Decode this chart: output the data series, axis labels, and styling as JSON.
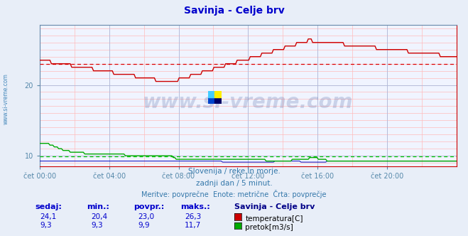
{
  "title": "Savinja - Celje brv",
  "title_color": "#0000cc",
  "bg_color": "#e8eef8",
  "plot_bg_color": "#f0f4ff",
  "grid_major_color": "#aabbdd",
  "grid_minor_color": "#ffcccc",
  "tick_label_color": "#5588aa",
  "spine_color_left": "#6688aa",
  "spine_color_bottom": "#cc0000",
  "ylim": [
    8.5,
    28.5
  ],
  "yticks": [
    10,
    20
  ],
  "xtick_positions": [
    0,
    4,
    8,
    12,
    16,
    20
  ],
  "xtick_labels": [
    "čet 00:00",
    "čet 04:00",
    "čet 08:00",
    "čet 12:00",
    "čet 16:00",
    "čet 20:00"
  ],
  "watermark": "www.si-vreme.com",
  "watermark_color": "#1a3a8a",
  "watermark_alpha": 0.18,
  "subtitle1": "Slovenija / reke in morje.",
  "subtitle2": "zadnji dan / 5 minut.",
  "subtitle3": "Meritve: povprečne  Enote: metrične  Črta: povprečje",
  "subtitle_color": "#3377aa",
  "legend_title": "Savinja - Celje brv",
  "legend_title_color": "#000088",
  "stats_headers": [
    "sedaj:",
    "min.:",
    "povpr.:",
    "maks.:"
  ],
  "stats_temp": [
    "24,1",
    "20,4",
    "23,0",
    "26,3"
  ],
  "stats_flow": [
    "9,3",
    "9,3",
    "9,9",
    "11,7"
  ],
  "stats_color": "#0000cc",
  "temp_line_color": "#cc0000",
  "flow_line_color": "#00aa00",
  "height_line_color": "#0000bb",
  "temp_avg_value": 23.0,
  "flow_avg_value": 9.9,
  "avg_line_color_temp": "#dd0000",
  "avg_line_color_flow": "#00cc00",
  "sidebar_text": "www.si-vreme.com",
  "sidebar_color": "#4488bb"
}
